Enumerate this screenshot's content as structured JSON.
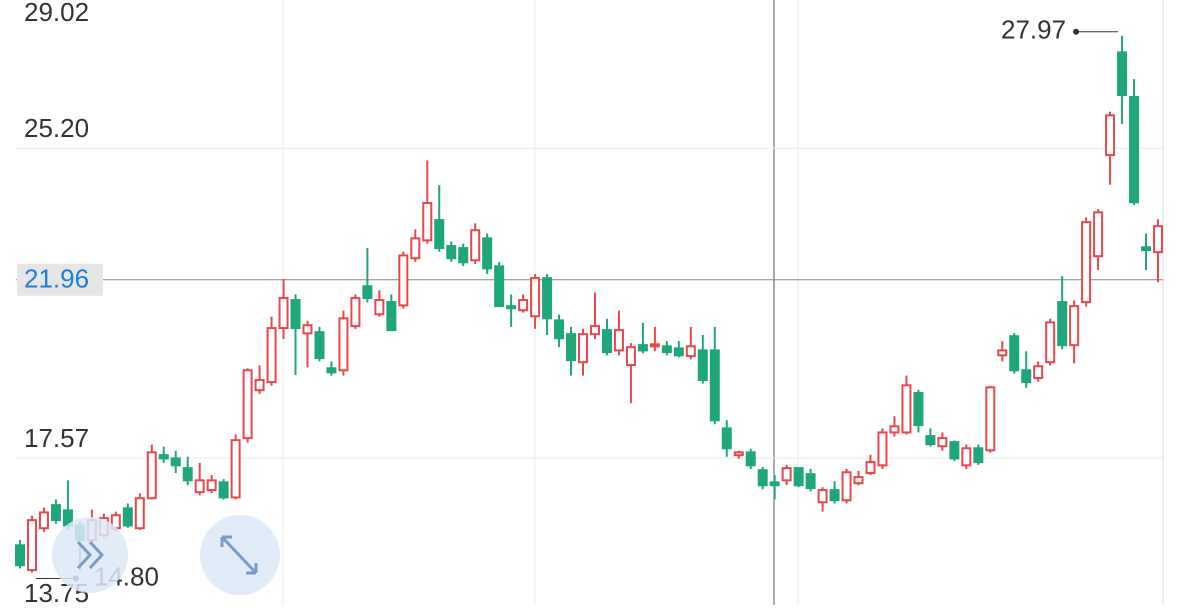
{
  "chart_data": {
    "type": "candlestick",
    "up_color": "#e8474b",
    "down_color": "#1fa67a",
    "ylim": [
      13.95,
      28.85
    ],
    "yticks": [
      29.02,
      {
        "value": 25.2,
        "label": "25.20"
      },
      17.57,
      13.75
    ],
    "grid": true,
    "crosshair_price": 21.96,
    "annotations": [
      {
        "candle": 92,
        "value": 27.97
      },
      {
        "candle": 5,
        "value": 14.8,
        "label": "14.80"
      }
    ],
    "ohlc": [
      [
        15.42,
        15.55,
        14.85,
        14.93
      ],
      [
        14.81,
        16.15,
        14.75,
        16.04
      ],
      [
        15.84,
        16.35,
        15.75,
        16.23
      ],
      [
        16.41,
        16.55,
        15.95,
        16.04
      ],
      [
        16.28,
        17.02,
        15.8,
        15.91
      ],
      [
        15.91,
        16.0,
        14.8,
        15.55
      ],
      [
        15.55,
        16.3,
        15.45,
        16.04
      ],
      [
        15.67,
        16.2,
        15.6,
        16.09
      ],
      [
        15.84,
        16.25,
        15.75,
        16.16
      ],
      [
        16.33,
        16.45,
        15.85,
        15.91
      ],
      [
        15.84,
        16.7,
        15.8,
        16.58
      ],
      [
        16.58,
        17.9,
        16.55,
        17.71
      ],
      [
        17.64,
        17.85,
        17.45,
        17.56
      ],
      [
        17.56,
        17.75,
        17.2,
        17.39
      ],
      [
        17.32,
        17.6,
        16.9,
        17.02
      ],
      [
        16.73,
        17.45,
        16.65,
        17.02
      ],
      [
        16.78,
        17.15,
        16.7,
        17.02
      ],
      [
        16.97,
        17.05,
        16.55,
        16.6
      ],
      [
        16.6,
        18.15,
        16.55,
        18.01
      ],
      [
        18.06,
        19.78,
        17.95,
        19.73
      ],
      [
        19.24,
        19.85,
        19.15,
        19.49
      ],
      [
        19.44,
        21.05,
        19.35,
        20.77
      ],
      [
        20.77,
        21.98,
        20.5,
        21.51
      ],
      [
        21.46,
        21.6,
        19.61,
        20.77
      ],
      [
        20.64,
        20.95,
        19.8,
        20.84
      ],
      [
        20.67,
        20.8,
        19.95,
        20.03
      ],
      [
        19.78,
        19.95,
        19.6,
        19.68
      ],
      [
        19.73,
        21.2,
        19.6,
        21.01
      ],
      [
        20.82,
        21.6,
        20.75,
        21.51
      ],
      [
        21.8,
        22.74,
        21.4,
        21.51
      ],
      [
        21.11,
        21.7,
        21.05,
        21.46
      ],
      [
        21.41,
        21.6,
        20.7,
        20.72
      ],
      [
        21.33,
        22.65,
        21.25,
        22.56
      ],
      [
        22.49,
        23.2,
        22.4,
        22.98
      ],
      [
        22.93,
        24.9,
        22.85,
        23.85
      ],
      [
        23.43,
        24.29,
        22.65,
        22.74
      ],
      [
        22.79,
        22.9,
        22.4,
        22.49
      ],
      [
        22.74,
        22.85,
        22.3,
        22.39
      ],
      [
        22.44,
        23.35,
        22.35,
        23.18
      ],
      [
        22.98,
        23.1,
        22.1,
        22.24
      ],
      [
        22.29,
        22.4,
        21.3,
        21.31
      ],
      [
        21.31,
        21.6,
        20.8,
        21.26
      ],
      [
        21.21,
        21.6,
        21.15,
        21.46
      ],
      [
        21.06,
        22.1,
        20.75,
        22.0
      ],
      [
        22.0,
        22.1,
        20.6,
        21.01
      ],
      [
        20.96,
        21.1,
        20.3,
        20.52
      ],
      [
        20.62,
        20.8,
        19.6,
        19.98
      ],
      [
        19.93,
        20.75,
        19.6,
        20.62
      ],
      [
        20.62,
        21.65,
        20.5,
        20.82
      ],
      [
        20.72,
        21.0,
        20.1,
        20.18
      ],
      [
        20.22,
        21.2,
        20.1,
        20.72
      ],
      [
        19.86,
        20.4,
        18.92,
        20.3
      ],
      [
        20.35,
        20.9,
        20.15,
        20.22
      ],
      [
        20.32,
        20.8,
        20.2,
        20.37
      ],
      [
        20.32,
        20.45,
        20.1,
        20.18
      ],
      [
        20.27,
        20.45,
        20.05,
        20.1
      ],
      [
        20.08,
        20.8,
        20.0,
        20.32
      ],
      [
        20.22,
        20.6,
        19.4,
        19.49
      ],
      [
        20.22,
        20.8,
        18.4,
        18.5
      ],
      [
        18.3,
        18.5,
        17.6,
        17.81
      ],
      [
        17.64,
        17.75,
        17.55,
        17.71
      ],
      [
        17.71,
        17.8,
        17.3,
        17.39
      ],
      [
        17.27,
        17.35,
        16.8,
        16.9
      ],
      [
        16.97,
        17.15,
        16.55,
        16.9
      ],
      [
        17.02,
        17.4,
        16.9,
        17.32
      ],
      [
        17.32,
        17.35,
        16.85,
        16.9
      ],
      [
        17.17,
        17.3,
        16.75,
        16.83
      ],
      [
        16.48,
        16.85,
        16.25,
        16.78
      ],
      [
        16.78,
        17.0,
        16.45,
        16.53
      ],
      [
        16.53,
        17.3,
        16.45,
        17.22
      ],
      [
        16.95,
        17.25,
        16.9,
        17.1
      ],
      [
        17.2,
        17.65,
        17.15,
        17.47
      ],
      [
        17.39,
        18.3,
        17.3,
        18.2
      ],
      [
        18.2,
        18.6,
        18.1,
        18.35
      ],
      [
        18.2,
        19.6,
        18.15,
        19.36
      ],
      [
        19.17,
        19.25,
        18.2,
        18.38
      ],
      [
        18.11,
        18.3,
        17.85,
        17.91
      ],
      [
        17.86,
        18.2,
        17.75,
        18.06
      ],
      [
        17.96,
        18.0,
        17.5,
        17.56
      ],
      [
        17.39,
        17.9,
        17.3,
        17.81
      ],
      [
        17.81,
        17.9,
        17.4,
        17.47
      ],
      [
        17.76,
        19.35,
        17.7,
        19.31
      ],
      [
        20.1,
        20.45,
        19.95,
        20.22
      ],
      [
        20.57,
        20.65,
        19.65,
        19.73
      ],
      [
        19.73,
        20.2,
        19.3,
        19.44
      ],
      [
        19.54,
        19.95,
        19.45,
        19.83
      ],
      [
        19.93,
        21.0,
        19.85,
        20.91
      ],
      [
        21.41,
        22.05,
        20.25,
        20.35
      ],
      [
        20.35,
        21.45,
        19.9,
        21.31
      ],
      [
        21.41,
        23.5,
        21.3,
        23.38
      ],
      [
        22.54,
        23.7,
        22.2,
        23.62
      ],
      [
        25.03,
        26.1,
        24.3,
        26.01
      ],
      [
        27.56,
        27.97,
        25.8,
        26.51
      ],
      [
        26.46,
        26.9,
        23.8,
        23.87
      ],
      [
        22.76,
        23.1,
        22.2,
        22.69
      ],
      [
        22.64,
        23.45,
        21.9,
        23.28
      ]
    ]
  }
}
